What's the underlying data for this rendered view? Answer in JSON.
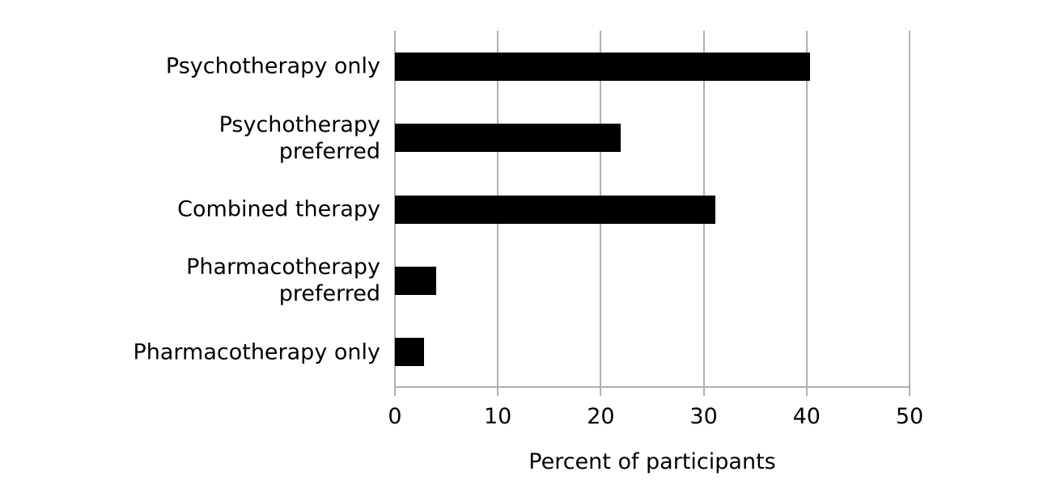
{
  "figure": {
    "background": "#ffffff"
  },
  "chart_data": {
    "type": "bar",
    "orientation": "horizontal",
    "title": "",
    "xlabel": "Percent of participants",
    "ylabel": "",
    "categories": [
      "Psychotherapy only",
      "Psychotherapy preferred",
      "Combined therapy",
      "Pharmacotherapy preferred",
      "Pharmacotherapy only"
    ],
    "category_lines": [
      [
        "Psychotherapy only"
      ],
      [
        "Psychotherapy",
        "preferred"
      ],
      [
        "Combined therapy"
      ],
      [
        "Pharmacotherapy",
        "preferred"
      ],
      [
        "Pharmacotherapy only"
      ]
    ],
    "values": [
      40.3,
      21.9,
      31.1,
      4.0,
      2.8
    ],
    "xlim": [
      0,
      50
    ],
    "xticks": [
      0,
      10,
      20,
      30,
      40,
      50
    ],
    "grid": true,
    "legend": "none",
    "bar_color": "#000000",
    "grid_color": "#b0b0b0",
    "text_color": "#000000"
  }
}
